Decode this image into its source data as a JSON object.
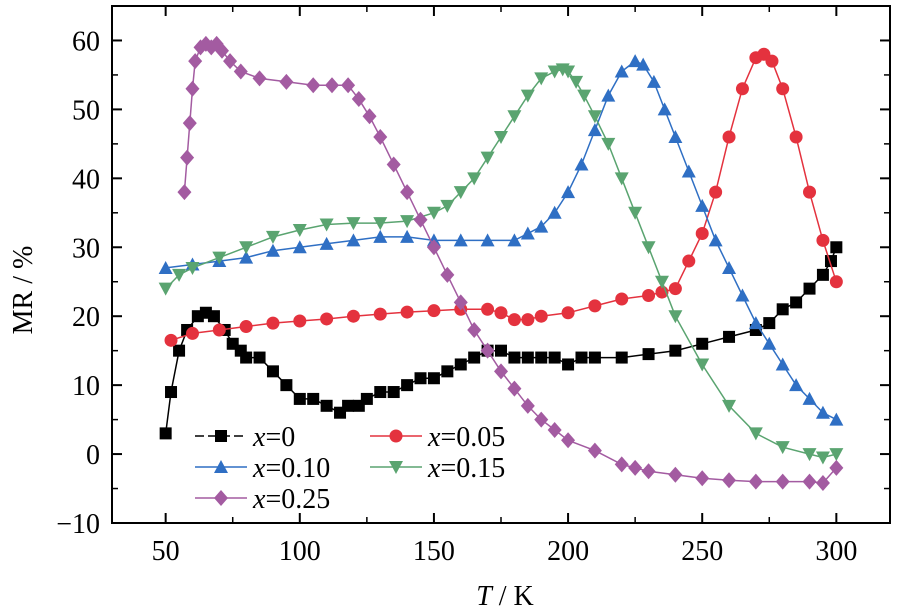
{
  "chart_data": {
    "type": "line",
    "title": "",
    "xlabel": {
      "italic": "T",
      "rest": " / K"
    },
    "ylabel": "MR / %",
    "xlim": [
      30,
      320
    ],
    "ylim": [
      -10,
      65
    ],
    "xticks": [
      50,
      100,
      150,
      200,
      250,
      300
    ],
    "yticks": [
      -10,
      0,
      10,
      20,
      30,
      40,
      50,
      60
    ],
    "xtick_labels": [
      "50",
      "100",
      "150",
      "200",
      "250",
      "300"
    ],
    "ytick_labels": [
      "−10",
      "0",
      "10",
      "20",
      "30",
      "40",
      "50",
      "60"
    ],
    "grid": false,
    "legend_position": "bottom-left",
    "series": [
      {
        "name": "x=0",
        "legend_italic": "x",
        "legend_value": "=0",
        "color": "#000000",
        "marker": "square",
        "x": [
          50,
          52,
          55,
          58,
          62,
          65,
          68,
          72,
          75,
          78,
          80,
          85,
          90,
          95,
          100,
          105,
          110,
          115,
          118,
          122,
          125,
          130,
          135,
          140,
          145,
          150,
          155,
          160,
          165,
          170,
          175,
          180,
          185,
          190,
          195,
          200,
          205,
          210,
          220,
          230,
          240,
          250,
          260,
          270,
          275,
          280,
          285,
          290,
          295,
          298,
          300
        ],
        "y": [
          3,
          9,
          15,
          18,
          20,
          20.5,
          20,
          18,
          16,
          15,
          14,
          14,
          12,
          10,
          8,
          8,
          7,
          6,
          7,
          7,
          8,
          9,
          9,
          10,
          11,
          11,
          12,
          13,
          14,
          15,
          15,
          14,
          14,
          14,
          14,
          13,
          14,
          14,
          14,
          14.5,
          15,
          16,
          17,
          18,
          19,
          21,
          22,
          24,
          26,
          28,
          30
        ]
      },
      {
        "name": "x=0.05",
        "legend_italic": "x",
        "legend_value": "=0.05",
        "color": "#e4323e",
        "marker": "circle",
        "x": [
          52,
          60,
          70,
          80,
          90,
          100,
          110,
          120,
          130,
          140,
          150,
          160,
          170,
          175,
          180,
          185,
          190,
          200,
          210,
          220,
          230,
          235,
          240,
          245,
          250,
          255,
          260,
          265,
          270,
          273,
          276,
          280,
          285,
          290,
          295,
          300
        ],
        "y": [
          16.5,
          17.5,
          18,
          18.5,
          19,
          19.3,
          19.6,
          20,
          20.3,
          20.6,
          20.8,
          21,
          21,
          20.5,
          19.5,
          19.5,
          20,
          20.5,
          21.5,
          22.5,
          23,
          23.5,
          24,
          28,
          32,
          38,
          46,
          53,
          57.5,
          58,
          57,
          53,
          46,
          38,
          31,
          25
        ]
      },
      {
        "name": "x=0.10",
        "legend_italic": "x",
        "legend_value": "=0.10",
        "color": "#2f6fc4",
        "marker": "triangle-up",
        "x": [
          50,
          60,
          70,
          80,
          90,
          100,
          110,
          120,
          130,
          140,
          150,
          160,
          170,
          180,
          185,
          190,
          195,
          200,
          205,
          210,
          215,
          220,
          225,
          228,
          232,
          236,
          240,
          245,
          250,
          255,
          260,
          265,
          270,
          275,
          280,
          285,
          290,
          295,
          300
        ],
        "y": [
          27,
          27.5,
          28,
          28.5,
          29.5,
          30,
          30.5,
          31,
          31.5,
          31.5,
          31,
          31,
          31,
          31,
          32,
          33,
          35,
          38,
          42,
          47,
          52,
          55.5,
          57,
          56.5,
          54,
          50,
          46,
          41,
          36,
          31,
          27,
          23,
          19,
          16,
          13,
          10,
          8,
          6,
          5
        ]
      },
      {
        "name": "x=0.15",
        "legend_italic": "x",
        "legend_value": "=0.15",
        "color": "#5aa470",
        "marker": "triangle-down",
        "x": [
          50,
          55,
          60,
          70,
          80,
          90,
          100,
          110,
          120,
          130,
          140,
          150,
          155,
          160,
          165,
          170,
          175,
          180,
          185,
          190,
          195,
          198,
          200,
          203,
          206,
          210,
          215,
          220,
          225,
          230,
          235,
          240,
          250,
          260,
          270,
          280,
          290,
          295,
          300
        ],
        "y": [
          24,
          26,
          27,
          28.5,
          30,
          31.5,
          32.5,
          33.3,
          33.5,
          33.5,
          33.8,
          35,
          36,
          38,
          40,
          43,
          46,
          49,
          52,
          54.5,
          55.5,
          55.8,
          55.5,
          54,
          52,
          49,
          45,
          40,
          35,
          30,
          25,
          20,
          13,
          7,
          3,
          1,
          0,
          -0.5,
          0
        ]
      },
      {
        "name": "x=0.25",
        "legend_italic": "x",
        "legend_value": "=0.25",
        "color": "#a35ba1",
        "marker": "diamond",
        "x": [
          57,
          58,
          59,
          60,
          61,
          63,
          65,
          67,
          69,
          71,
          74,
          78,
          85,
          95,
          105,
          112,
          118,
          122,
          126,
          130,
          135,
          140,
          145,
          150,
          155,
          160,
          165,
          170,
          175,
          180,
          185,
          190,
          195,
          200,
          210,
          220,
          225,
          230,
          240,
          250,
          260,
          270,
          280,
          290,
          295,
          300
        ],
        "y": [
          38,
          43,
          48,
          53,
          57,
          59,
          59.5,
          59,
          59.5,
          58.5,
          57,
          55.5,
          54.5,
          54,
          53.5,
          53.5,
          53.5,
          51.5,
          49,
          46,
          42,
          38,
          34,
          30,
          26,
          22,
          18,
          15,
          12,
          9.5,
          7,
          5,
          3.5,
          2,
          0.5,
          -1.5,
          -2,
          -2.5,
          -3,
          -3.5,
          -3.8,
          -4,
          -4,
          -4,
          -4.2,
          -2
        ]
      }
    ]
  }
}
